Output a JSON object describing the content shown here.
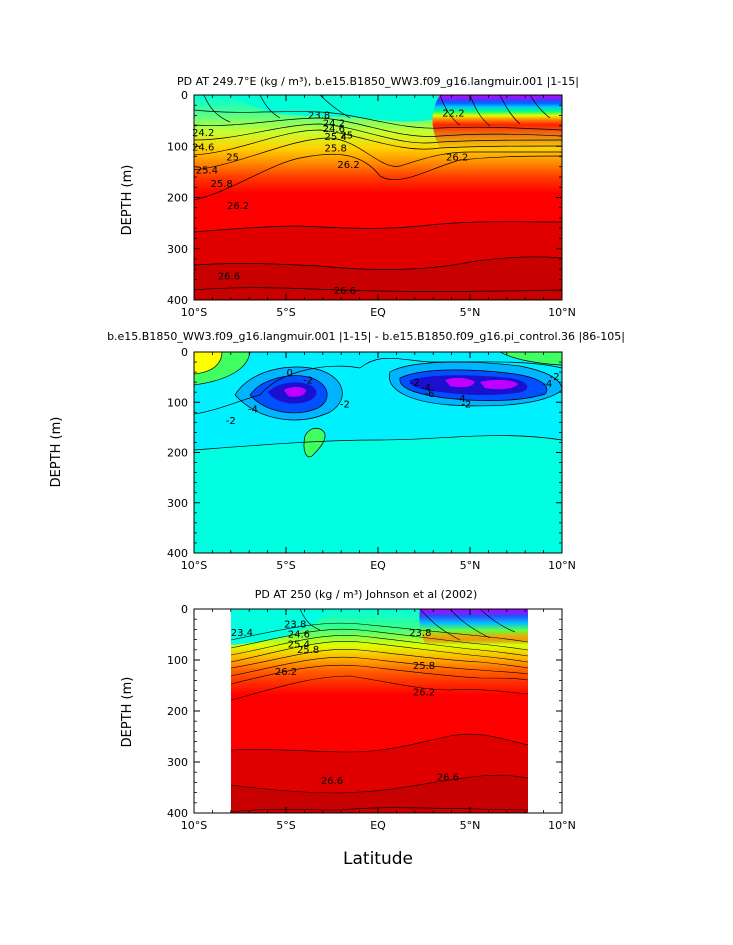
{
  "figure": {
    "xlabel_bottom": "Latitude"
  },
  "chart_data": [
    {
      "type": "heatmap",
      "title": "PD AT 249.7°E (kg / m³), b.e15.B1850_WW3.f09_g16.langmuir.001 |1-15|",
      "xlabel": "",
      "ylabel": "DEPTH (m)",
      "x_ticks": [
        "10°S",
        "5°S",
        "EQ",
        "5°N",
        "10°N"
      ],
      "x_values": [
        -10,
        -5,
        0,
        5,
        10
      ],
      "y_ticks": [
        "0",
        "100",
        "200",
        "300",
        "400"
      ],
      "y_values": [
        0,
        100,
        200,
        300,
        400
      ],
      "xlim": [
        -10,
        10
      ],
      "ylim": [
        0,
        400
      ],
      "y_inverted": true,
      "contour_labels": [
        {
          "text": "23.8",
          "lat": -3.2,
          "depth": 38
        },
        {
          "text": "24.2",
          "lat": -9.5,
          "depth": 72
        },
        {
          "text": "24.6",
          "lat": -9.5,
          "depth": 100
        },
        {
          "text": "25",
          "lat": -7.9,
          "depth": 120
        },
        {
          "text": "25.4",
          "lat": -9.3,
          "depth": 145
        },
        {
          "text": "25.8",
          "lat": -8.5,
          "depth": 172
        },
        {
          "text": "26.2",
          "lat": -7.6,
          "depth": 215
        },
        {
          "text": "26.2",
          "lat": -1.6,
          "depth": 135
        },
        {
          "text": "25.8",
          "lat": -2.3,
          "depth": 102
        },
        {
          "text": "25.4",
          "lat": -2.3,
          "depth": 80
        },
        {
          "text": "25",
          "lat": -1.7,
          "depth": 77
        },
        {
          "text": "24.6",
          "lat": -2.4,
          "depth": 64
        },
        {
          "text": "24.2",
          "lat": -2.4,
          "depth": 54
        },
        {
          "text": "22.2",
          "lat": 4.1,
          "depth": 34
        },
        {
          "text": "26.2",
          "lat": 4.3,
          "depth": 120
        },
        {
          "text": "26.6",
          "lat": -8.1,
          "depth": 352
        },
        {
          "text": "26.6",
          "lat": -1.8,
          "depth": 380
        }
      ]
    },
    {
      "type": "heatmap",
      "title": "b.e15.B1850_WW3.f09_g16.langmuir.001 |1-15| - b.e15.B1850.f09_g16.pi_control.36 |86-105|",
      "xlabel": "",
      "ylabel": "DEPTH (m)",
      "x_ticks": [
        "10°S",
        "5°S",
        "EQ",
        "5°N",
        "10°N"
      ],
      "x_values": [
        -10,
        -5,
        0,
        5,
        10
      ],
      "y_ticks": [
        "0",
        "100",
        "200",
        "300",
        "400"
      ],
      "y_values": [
        0,
        100,
        200,
        300,
        400
      ],
      "xlim": [
        -10,
        10
      ],
      "ylim": [
        0,
        400
      ],
      "y_inverted": true,
      "contour_labels": [
        {
          "text": "0",
          "lat": -4.8,
          "depth": 40
        },
        {
          "text": "-2",
          "lat": -3.8,
          "depth": 55
        },
        {
          "text": "-4",
          "lat": -6.8,
          "depth": 112
        },
        {
          "text": "-2",
          "lat": -8.0,
          "depth": 135
        },
        {
          "text": "-2",
          "lat": -1.8,
          "depth": 102
        },
        {
          "text": "-2",
          "lat": 2.0,
          "depth": 60
        },
        {
          "text": "-4",
          "lat": 2.6,
          "depth": 70
        },
        {
          "text": "-6",
          "lat": 2.8,
          "depth": 82
        },
        {
          "text": "-4",
          "lat": 4.5,
          "depth": 92
        },
        {
          "text": "-2",
          "lat": 4.8,
          "depth": 102
        },
        {
          "text": "-4",
          "lat": 9.2,
          "depth": 62
        },
        {
          "text": "-2",
          "lat": 9.6,
          "depth": 48
        }
      ]
    },
    {
      "type": "heatmap",
      "title": "PD AT 250 (kg / m³) Johnson et al (2002)",
      "xlabel": "Latitude",
      "ylabel": "DEPTH (m)",
      "x_ticks": [
        "10°S",
        "5°S",
        "EQ",
        "5°N",
        "10°N"
      ],
      "x_values": [
        -10,
        -5,
        0,
        5,
        10
      ],
      "y_ticks": [
        "0",
        "100",
        "200",
        "300",
        "400"
      ],
      "y_values": [
        0,
        100,
        200,
        300,
        400
      ],
      "xlim": [
        -10,
        10
      ],
      "ylim": [
        0,
        400
      ],
      "y_inverted": true,
      "data_lat_range": [
        -8,
        8
      ],
      "contour_labels": [
        {
          "text": "23.4",
          "lat": -7.4,
          "depth": 45
        },
        {
          "text": "23.8",
          "lat": -4.5,
          "depth": 28
        },
        {
          "text": "24.6",
          "lat": -4.3,
          "depth": 48
        },
        {
          "text": "25.4",
          "lat": -4.3,
          "depth": 68
        },
        {
          "text": "25.8",
          "lat": -3.8,
          "depth": 78
        },
        {
          "text": "26.2",
          "lat": -5.0,
          "depth": 122
        },
        {
          "text": "26.2",
          "lat": 2.5,
          "depth": 162
        },
        {
          "text": "25.8",
          "lat": 2.5,
          "depth": 110
        },
        {
          "text": "23.8",
          "lat": 2.3,
          "depth": 45
        },
        {
          "text": "26.6",
          "lat": -2.5,
          "depth": 335
        },
        {
          "text": "26.6",
          "lat": 3.8,
          "depth": 328
        }
      ]
    }
  ]
}
